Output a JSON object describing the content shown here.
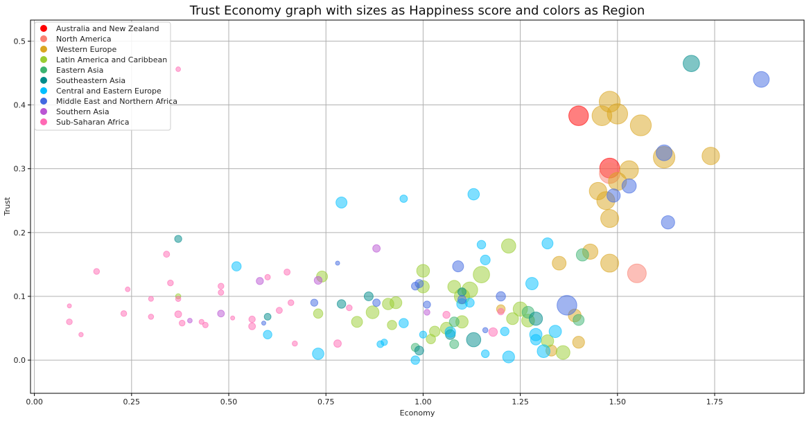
{
  "chart_data": {
    "type": "scatter",
    "title": "Trust Economy graph with sizes as Happiness score and colors as Region",
    "xlabel": "Economy",
    "ylabel": "Trust",
    "xlim": [
      -0.01,
      1.98
    ],
    "ylim": [
      -0.052,
      0.533
    ],
    "x_ticks": [
      0.0,
      0.25,
      0.5,
      0.75,
      1.0,
      1.25,
      1.5,
      1.75
    ],
    "x_tick_labels": [
      "0.00",
      "0.25",
      "0.50",
      "0.75",
      "1.00",
      "1.25",
      "1.50",
      "1.75"
    ],
    "y_ticks": [
      0.0,
      0.1,
      0.2,
      0.3,
      0.4,
      0.5
    ],
    "y_tick_labels": [
      "0.0",
      "0.1",
      "0.2",
      "0.3",
      "0.4",
      "0.5"
    ],
    "grid": true,
    "legend_position": "top-left",
    "series": [
      {
        "name": "Australia and New Zealand",
        "color": "#ff0000",
        "points": [
          [
            1.4,
            0.383,
            7.28
          ],
          [
            1.48,
            0.301,
            7.32
          ]
        ]
      },
      {
        "name": "North America",
        "color": "#fa8072",
        "points": [
          [
            1.55,
            0.136,
            7.12
          ],
          [
            1.48,
            0.293,
            7.43
          ]
        ]
      },
      {
        "name": "Western Europe",
        "color": "#daa520",
        "points": [
          [
            1.46,
            0.383,
            7.3
          ],
          [
            1.48,
            0.405,
            7.5
          ],
          [
            1.5,
            0.386,
            7.4
          ],
          [
            1.56,
            0.368,
            7.5
          ],
          [
            1.62,
            0.318,
            7.6
          ],
          [
            1.74,
            0.32,
            6.9
          ],
          [
            1.53,
            0.298,
            7.1
          ],
          [
            1.5,
            0.28,
            7.0
          ],
          [
            1.45,
            0.265,
            6.9
          ],
          [
            1.47,
            0.25,
            7.0
          ],
          [
            1.48,
            0.222,
            7.0
          ],
          [
            1.48,
            0.152,
            7.0
          ],
          [
            1.43,
            0.17,
            6.5
          ],
          [
            1.35,
            0.152,
            6.2
          ],
          [
            1.39,
            0.07,
            6.0
          ],
          [
            1.4,
            0.028,
            5.8
          ],
          [
            1.33,
            0.015,
            5.6
          ],
          [
            1.2,
            0.08,
            5.0
          ]
        ]
      },
      {
        "name": "Latin America and Caribbean",
        "color": "#9acd32",
        "points": [
          [
            1.22,
            0.179,
            6.3
          ],
          [
            1.15,
            0.134,
            6.7
          ],
          [
            1.12,
            0.11,
            6.6
          ],
          [
            1.1,
            0.1,
            6.5
          ],
          [
            1.08,
            0.115,
            6.0
          ],
          [
            1.0,
            0.14,
            6.0
          ],
          [
            1.0,
            0.115,
            5.9
          ],
          [
            1.25,
            0.08,
            6.3
          ],
          [
            1.27,
            0.062,
            6.0
          ],
          [
            1.23,
            0.065,
            5.8
          ],
          [
            1.1,
            0.06,
            5.9
          ],
          [
            1.06,
            0.05,
            5.8
          ],
          [
            1.03,
            0.045,
            5.5
          ],
          [
            1.02,
            0.033,
            5.2
          ],
          [
            0.93,
            0.09,
            5.8
          ],
          [
            0.91,
            0.088,
            5.7
          ],
          [
            0.87,
            0.075,
            6.0
          ],
          [
            0.83,
            0.06,
            5.6
          ],
          [
            0.92,
            0.055,
            5.2
          ],
          [
            0.74,
            0.131,
            5.6
          ],
          [
            0.73,
            0.073,
            5.2
          ],
          [
            1.36,
            0.012,
            6.2
          ],
          [
            1.32,
            0.03,
            5.9
          ],
          [
            0.37,
            0.1,
            4.0
          ]
        ]
      },
      {
        "name": "Eastern Asia",
        "color": "#3cb371",
        "points": [
          [
            1.41,
            0.165,
            5.9
          ],
          [
            1.4,
            0.063,
            5.6
          ],
          [
            1.27,
            0.075,
            5.8
          ],
          [
            1.08,
            0.025,
            5.1
          ],
          [
            1.08,
            0.06,
            5.3
          ],
          [
            0.98,
            0.02,
            4.9
          ]
        ]
      },
      {
        "name": "Southeastern Asia",
        "color": "#008b8b",
        "points": [
          [
            1.69,
            0.465,
            6.7
          ],
          [
            1.13,
            0.032,
            6.3
          ],
          [
            1.29,
            0.065,
            6.1
          ],
          [
            1.07,
            0.04,
            5.3
          ],
          [
            0.99,
            0.015,
            5.1
          ],
          [
            0.86,
            0.1,
            5.1
          ],
          [
            0.79,
            0.088,
            5.0
          ],
          [
            0.6,
            0.068,
            4.5
          ],
          [
            0.37,
            0.19,
            4.6
          ],
          [
            1.1,
            0.107,
            4.9
          ]
        ]
      },
      {
        "name": "Central and Eastern Europe",
        "color": "#00bfff",
        "points": [
          [
            0.79,
            0.247,
            5.6
          ],
          [
            0.95,
            0.253,
            4.7
          ],
          [
            1.13,
            0.26,
            5.7
          ],
          [
            0.73,
            0.01,
            5.7
          ],
          [
            0.52,
            0.147,
            5.2
          ],
          [
            0.6,
            0.04,
            5.0
          ],
          [
            0.95,
            0.058,
            5.2
          ],
          [
            1.0,
            0.04,
            4.6
          ],
          [
            0.98,
            0.0,
            5.0
          ],
          [
            0.89,
            0.025,
            4.5
          ],
          [
            0.9,
            0.028,
            4.4
          ],
          [
            1.07,
            0.044,
            5.5
          ],
          [
            1.1,
            0.088,
            5.5
          ],
          [
            1.12,
            0.09,
            5.1
          ],
          [
            1.15,
            0.181,
            5.0
          ],
          [
            1.16,
            0.157,
            5.3
          ],
          [
            1.16,
            0.01,
            4.8
          ],
          [
            1.21,
            0.045,
            5.0
          ],
          [
            1.22,
            0.005,
            5.8
          ],
          [
            1.28,
            0.12,
            5.9
          ],
          [
            1.29,
            0.04,
            5.9
          ],
          [
            1.32,
            0.183,
            5.6
          ],
          [
            1.31,
            0.014,
            6.0
          ],
          [
            1.34,
            0.045,
            5.9
          ],
          [
            1.29,
            0.032,
            5.5
          ]
        ]
      },
      {
        "name": "Middle East and Northern Africa",
        "color": "#4169e1",
        "points": [
          [
            1.87,
            0.44,
            6.6
          ],
          [
            1.62,
            0.325,
            6.6
          ],
          [
            1.53,
            0.273,
            6.3
          ],
          [
            1.63,
            0.216,
            6.1
          ],
          [
            1.37,
            0.086,
            7.3
          ],
          [
            1.09,
            0.147,
            5.6
          ],
          [
            1.2,
            0.1,
            5.2
          ],
          [
            0.99,
            0.12,
            4.9
          ],
          [
            0.98,
            0.116,
            4.8
          ],
          [
            1.01,
            0.087,
            4.6
          ],
          [
            1.1,
            0.095,
            4.9
          ],
          [
            0.88,
            0.09,
            4.7
          ],
          [
            0.72,
            0.09,
            4.6
          ],
          [
            0.78,
            0.152,
            3.6
          ],
          [
            0.59,
            0.058,
            3.6
          ],
          [
            1.16,
            0.047,
            4.0
          ],
          [
            1.49,
            0.258,
            6.1
          ]
        ]
      },
      {
        "name": "Southern Asia",
        "color": "#ba55d3",
        "points": [
          [
            0.88,
            0.175,
            4.7
          ],
          [
            0.73,
            0.125,
            4.8
          ],
          [
            0.58,
            0.124,
            4.6
          ],
          [
            0.48,
            0.073,
            4.5
          ],
          [
            0.4,
            0.062,
            3.8
          ],
          [
            1.01,
            0.075,
            4.2
          ]
        ]
      },
      {
        "name": "Sub-Saharan Africa",
        "color": "#ff69b4",
        "points": [
          [
            0.37,
            0.456,
            3.8
          ],
          [
            0.16,
            0.139,
            4.2
          ],
          [
            0.34,
            0.166,
            4.3
          ],
          [
            0.35,
            0.121,
            4.2
          ],
          [
            0.24,
            0.111,
            3.8
          ],
          [
            0.09,
            0.085,
            3.4
          ],
          [
            0.09,
            0.06,
            4.2
          ],
          [
            0.12,
            0.04,
            3.7
          ],
          [
            0.23,
            0.073,
            4.2
          ],
          [
            0.3,
            0.096,
            3.9
          ],
          [
            0.3,
            0.068,
            4.0
          ],
          [
            0.37,
            0.072,
            4.5
          ],
          [
            0.37,
            0.096,
            4.0
          ],
          [
            0.38,
            0.058,
            4.2
          ],
          [
            0.43,
            0.06,
            3.9
          ],
          [
            0.44,
            0.055,
            4.1
          ],
          [
            0.48,
            0.116,
            4.2
          ],
          [
            0.48,
            0.106,
            4.1
          ],
          [
            0.51,
            0.066,
            3.6
          ],
          [
            0.56,
            0.064,
            4.4
          ],
          [
            0.56,
            0.053,
            4.5
          ],
          [
            0.6,
            0.13,
            4.1
          ],
          [
            0.63,
            0.078,
            4.3
          ],
          [
            0.65,
            0.138,
            4.3
          ],
          [
            0.66,
            0.09,
            4.2
          ],
          [
            0.67,
            0.026,
            4.0
          ],
          [
            0.78,
            0.026,
            4.7
          ],
          [
            0.81,
            0.082,
            4.2
          ],
          [
            1.06,
            0.071,
            4.6
          ],
          [
            1.18,
            0.044,
            5.0
          ],
          [
            1.2,
            0.076,
            4.4
          ]
        ]
      }
    ]
  }
}
